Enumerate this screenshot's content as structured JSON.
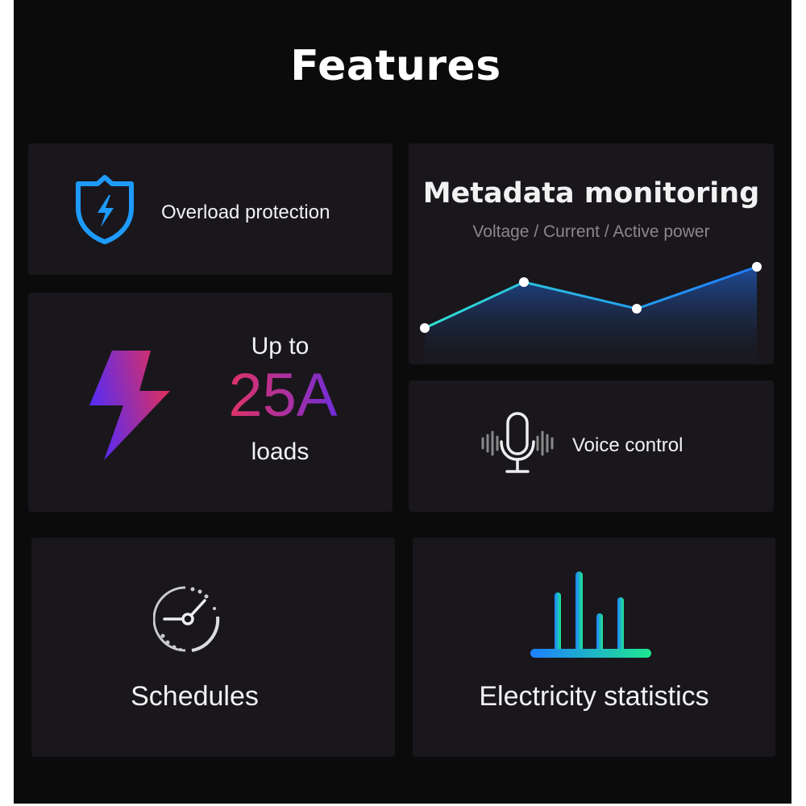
{
  "title": "Features",
  "colors": {
    "background": "#0b0b0c",
    "card": "#1a171c",
    "accent_blue": "#1e9bff",
    "accent_teal": "#22e0b0",
    "accent_red": "#ee3355",
    "accent_purple": "#6a2cf0"
  },
  "cards": {
    "overload": {
      "label": "Overload protection",
      "icon": "shield-lightning-icon"
    },
    "load": {
      "prefix": "Up to",
      "value": "25A",
      "suffix": "loads",
      "icon": "lightning-bolt-icon"
    },
    "monitoring": {
      "title": "Metadata monitoring",
      "subtitle": "Voltage / Current / Active power",
      "icon": "area-chart-icon"
    },
    "voice": {
      "label": "Voice control",
      "icon": "microphone-icon"
    },
    "schedules": {
      "label": "Schedules",
      "icon": "clock-icon"
    },
    "statistics": {
      "label": "Electricity statistics",
      "icon": "bar-chart-icon"
    }
  }
}
